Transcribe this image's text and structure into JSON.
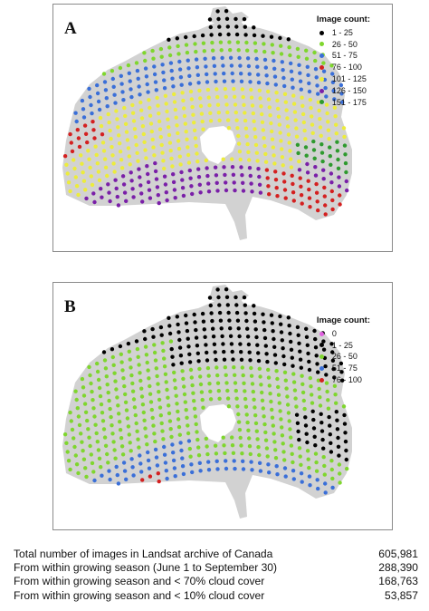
{
  "panels": [
    {
      "letter": "A",
      "legend_title": "Image count:",
      "legend": [
        {
          "label": "1 - 25",
          "color": "#000000"
        },
        {
          "label": "26 - 50",
          "color": "#7fd62e"
        },
        {
          "label": "51 - 75",
          "color": "#3a6fd8"
        },
        {
          "label": "76 - 100",
          "color": "#d42020"
        },
        {
          "label": "101 - 125",
          "color": "#ecec3c"
        },
        {
          "label": "126 - 150",
          "color": "#7a1fa8"
        },
        {
          "label": "151 - 175",
          "color": "#2e9a2e"
        }
      ]
    },
    {
      "letter": "B",
      "legend_title": "Image count:",
      "legend": [
        {
          "label": "0",
          "color": "#e060e0"
        },
        {
          "label": "1 - 25",
          "color": "#000000"
        },
        {
          "label": "26 - 50",
          "color": "#7fd62e"
        },
        {
          "label": "51 - 75",
          "color": "#3a6fd8"
        },
        {
          "label": "76 - 100",
          "color": "#d42020"
        }
      ]
    }
  ],
  "landmass_color": "#d2d2d2",
  "stats": [
    {
      "label": "Total number of images in Landsat archive of Canada",
      "value": "605,981"
    },
    {
      "label": "From within growing season (June 1 to September 30)",
      "value": "288,390"
    },
    {
      "label": "From within growing season and < 70% cloud cover",
      "value": "168,763"
    },
    {
      "label": "From within growing season and < 10% cloud cover",
      "value": "53,857"
    }
  ]
}
